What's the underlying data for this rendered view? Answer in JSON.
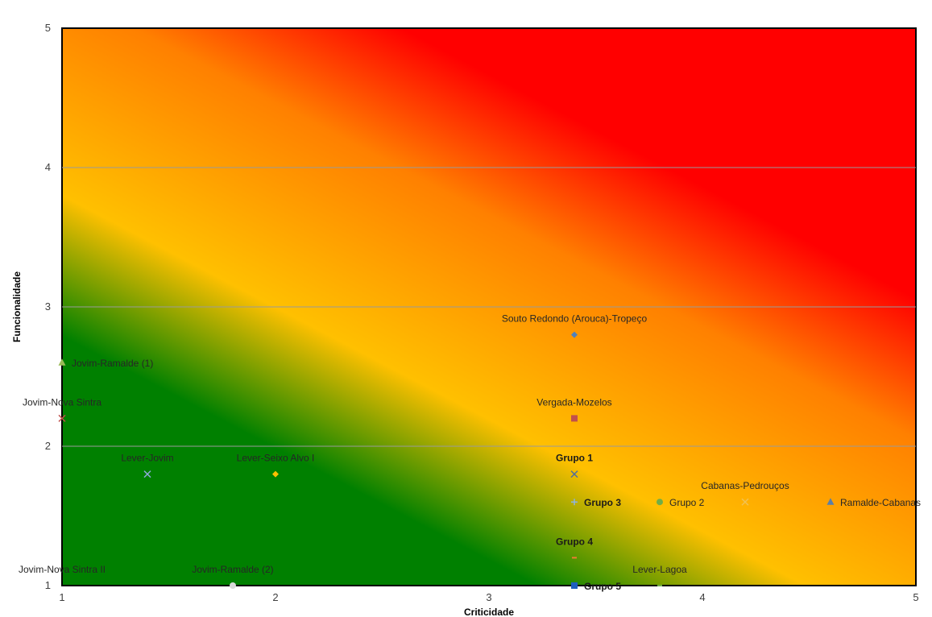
{
  "chart_data": {
    "type": "scatter",
    "xlabel": "Criticidade",
    "ylabel": "Funcionalidade",
    "xlim": [
      1,
      5
    ],
    "ylim": [
      1,
      5
    ],
    "x_ticks": [
      "1",
      "2",
      "3",
      "4",
      "5"
    ],
    "y_ticks": [
      "1",
      "2",
      "3",
      "4",
      "5"
    ],
    "grid": "horizontal",
    "background": "diagonal gradient: green (low) → yellow → orange → red (high)",
    "colors": {
      "green": "#008000",
      "yellow": "#ffc000",
      "orange": "#ff8000",
      "red": "#ff0000"
    },
    "points": [
      {
        "label": "Souto Redondo (Arouca)-Tropeço",
        "x": 3.4,
        "y": 2.8,
        "marker": "diamond",
        "color": "#4f81bd",
        "bold": false,
        "label_pos": "above"
      },
      {
        "label": "Jovim-Ramalde (1)",
        "x": 1.0,
        "y": 2.6,
        "marker": "triangle",
        "color": "#9bbb59",
        "bold": false,
        "label_pos": "right"
      },
      {
        "label": "Jovim-Nova Sintra",
        "x": 1.0,
        "y": 2.2,
        "marker": "x",
        "color": "#c0504d",
        "bold": false,
        "label_pos": "above"
      },
      {
        "label": "Vergada-Mozelos",
        "x": 3.4,
        "y": 2.2,
        "marker": "square",
        "color": "#c0504d",
        "bold": false,
        "label_pos": "above"
      },
      {
        "label": "Lever-Jovim",
        "x": 1.4,
        "y": 1.8,
        "marker": "x",
        "color": "#8faadc",
        "bold": false,
        "label_pos": "above"
      },
      {
        "label": "Lever-Seixo Alvo I",
        "x": 2.0,
        "y": 1.8,
        "marker": "diamond",
        "color": "#ffc000",
        "bold": false,
        "label_pos": "above"
      },
      {
        "label": "Grupo 1",
        "x": 3.4,
        "y": 1.8,
        "marker": "x",
        "color": "#4f6da0",
        "bold": true,
        "label_pos": "above"
      },
      {
        "label": "Cabanas-Pedrouços",
        "x": 4.2,
        "y": 1.6,
        "marker": "x",
        "color": "#f2c14e",
        "bold": false,
        "label_pos": "above"
      },
      {
        "label": "Grupo 3",
        "x": 3.4,
        "y": 1.6,
        "marker": "plus",
        "color": "#8db3e2",
        "bold": true,
        "label_pos": "right"
      },
      {
        "label": "Grupo 2",
        "x": 3.8,
        "y": 1.6,
        "marker": "circle",
        "color": "#70ad47",
        "bold": false,
        "label_pos": "right"
      },
      {
        "label": "Ramalde-Cabanas",
        "x": 4.6,
        "y": 1.6,
        "marker": "triangle",
        "color": "#5b7fa8",
        "bold": false,
        "label_pos": "right"
      },
      {
        "label": "Grupo 4",
        "x": 3.4,
        "y": 1.2,
        "marker": "dash",
        "color": "#ed7d31",
        "bold": true,
        "label_pos": "above"
      },
      {
        "label": "Jovim-Nova Sintra II",
        "x": 1.0,
        "y": 1.0,
        "marker": "none",
        "color": "#a5a5a5",
        "bold": false,
        "label_pos": "above"
      },
      {
        "label": "Jovim-Ramalde (2)",
        "x": 1.8,
        "y": 1.0,
        "marker": "circle",
        "color": "#d9d9d9",
        "bold": false,
        "label_pos": "above"
      },
      {
        "label": "Lever-Lagoa",
        "x": 3.8,
        "y": 1.0,
        "marker": "dash",
        "color": "#70ad47",
        "bold": false,
        "label_pos": "above"
      },
      {
        "label": "Grupo 5",
        "x": 3.4,
        "y": 1.0,
        "marker": "square",
        "color": "#1f5fbf",
        "bold": true,
        "label_pos": "right"
      }
    ]
  }
}
